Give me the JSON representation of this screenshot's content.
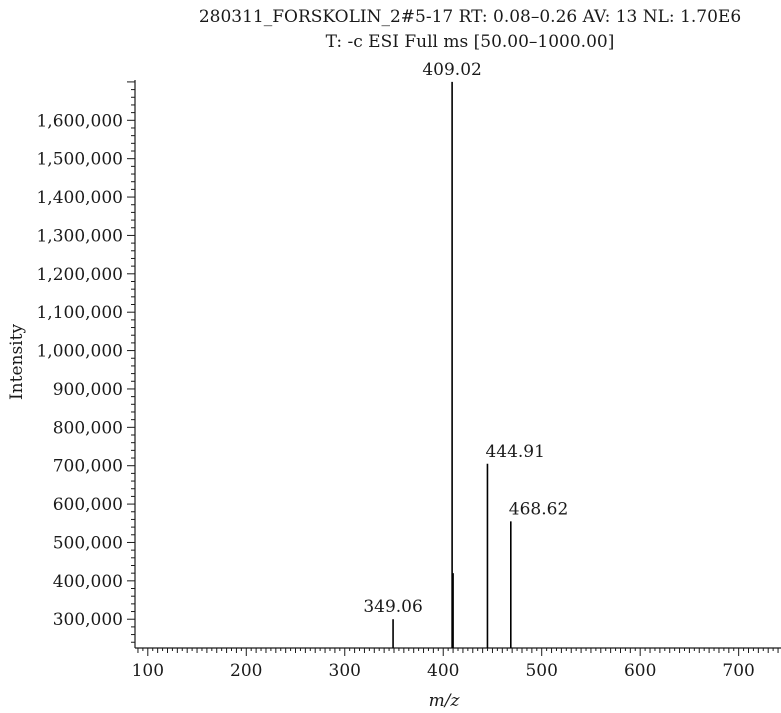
{
  "chart_data": {
    "type": "bar",
    "title": "280311_FORSKOLIN_2#5-17 RT: 0.08–0.26 AV: 13 NL: 1.70E6",
    "subtitle": "T: -c ESI Full ms [50.00–1000.00]",
    "xlabel": "m/z",
    "ylabel": "Intensity",
    "xlim": [
      87,
      743
    ],
    "ylim": [
      225000,
      1705000
    ],
    "x_ticks": [
      100,
      200,
      300,
      400,
      500,
      600,
      700
    ],
    "x_tick_labels": [
      "100",
      "200",
      "300",
      "400",
      "500",
      "600",
      "700"
    ],
    "y_ticks": [
      300000,
      400000,
      500000,
      600000,
      700000,
      800000,
      900000,
      1000000,
      1100000,
      1200000,
      1300000,
      1400000,
      1500000,
      1600000
    ],
    "y_tick_labels": [
      "300,000",
      "400,000",
      "500,000",
      "600,000",
      "700,000",
      "800,000",
      "900,000",
      "1,000,000",
      "1,100,000",
      "1,200,000",
      "1,300,000",
      "1,400,000",
      "1,500,000",
      "1,600,000"
    ],
    "grid": false,
    "peaks": [
      {
        "x": 349.06,
        "y": 300000,
        "label": "349.06"
      },
      {
        "x": 409.02,
        "y": 1700000,
        "label": "409.02"
      },
      {
        "x": 410.0,
        "y": 420000,
        "label": ""
      },
      {
        "x": 444.91,
        "y": 705000,
        "label": "444.91"
      },
      {
        "x": 468.62,
        "y": 555000,
        "label": "468.62"
      }
    ]
  }
}
